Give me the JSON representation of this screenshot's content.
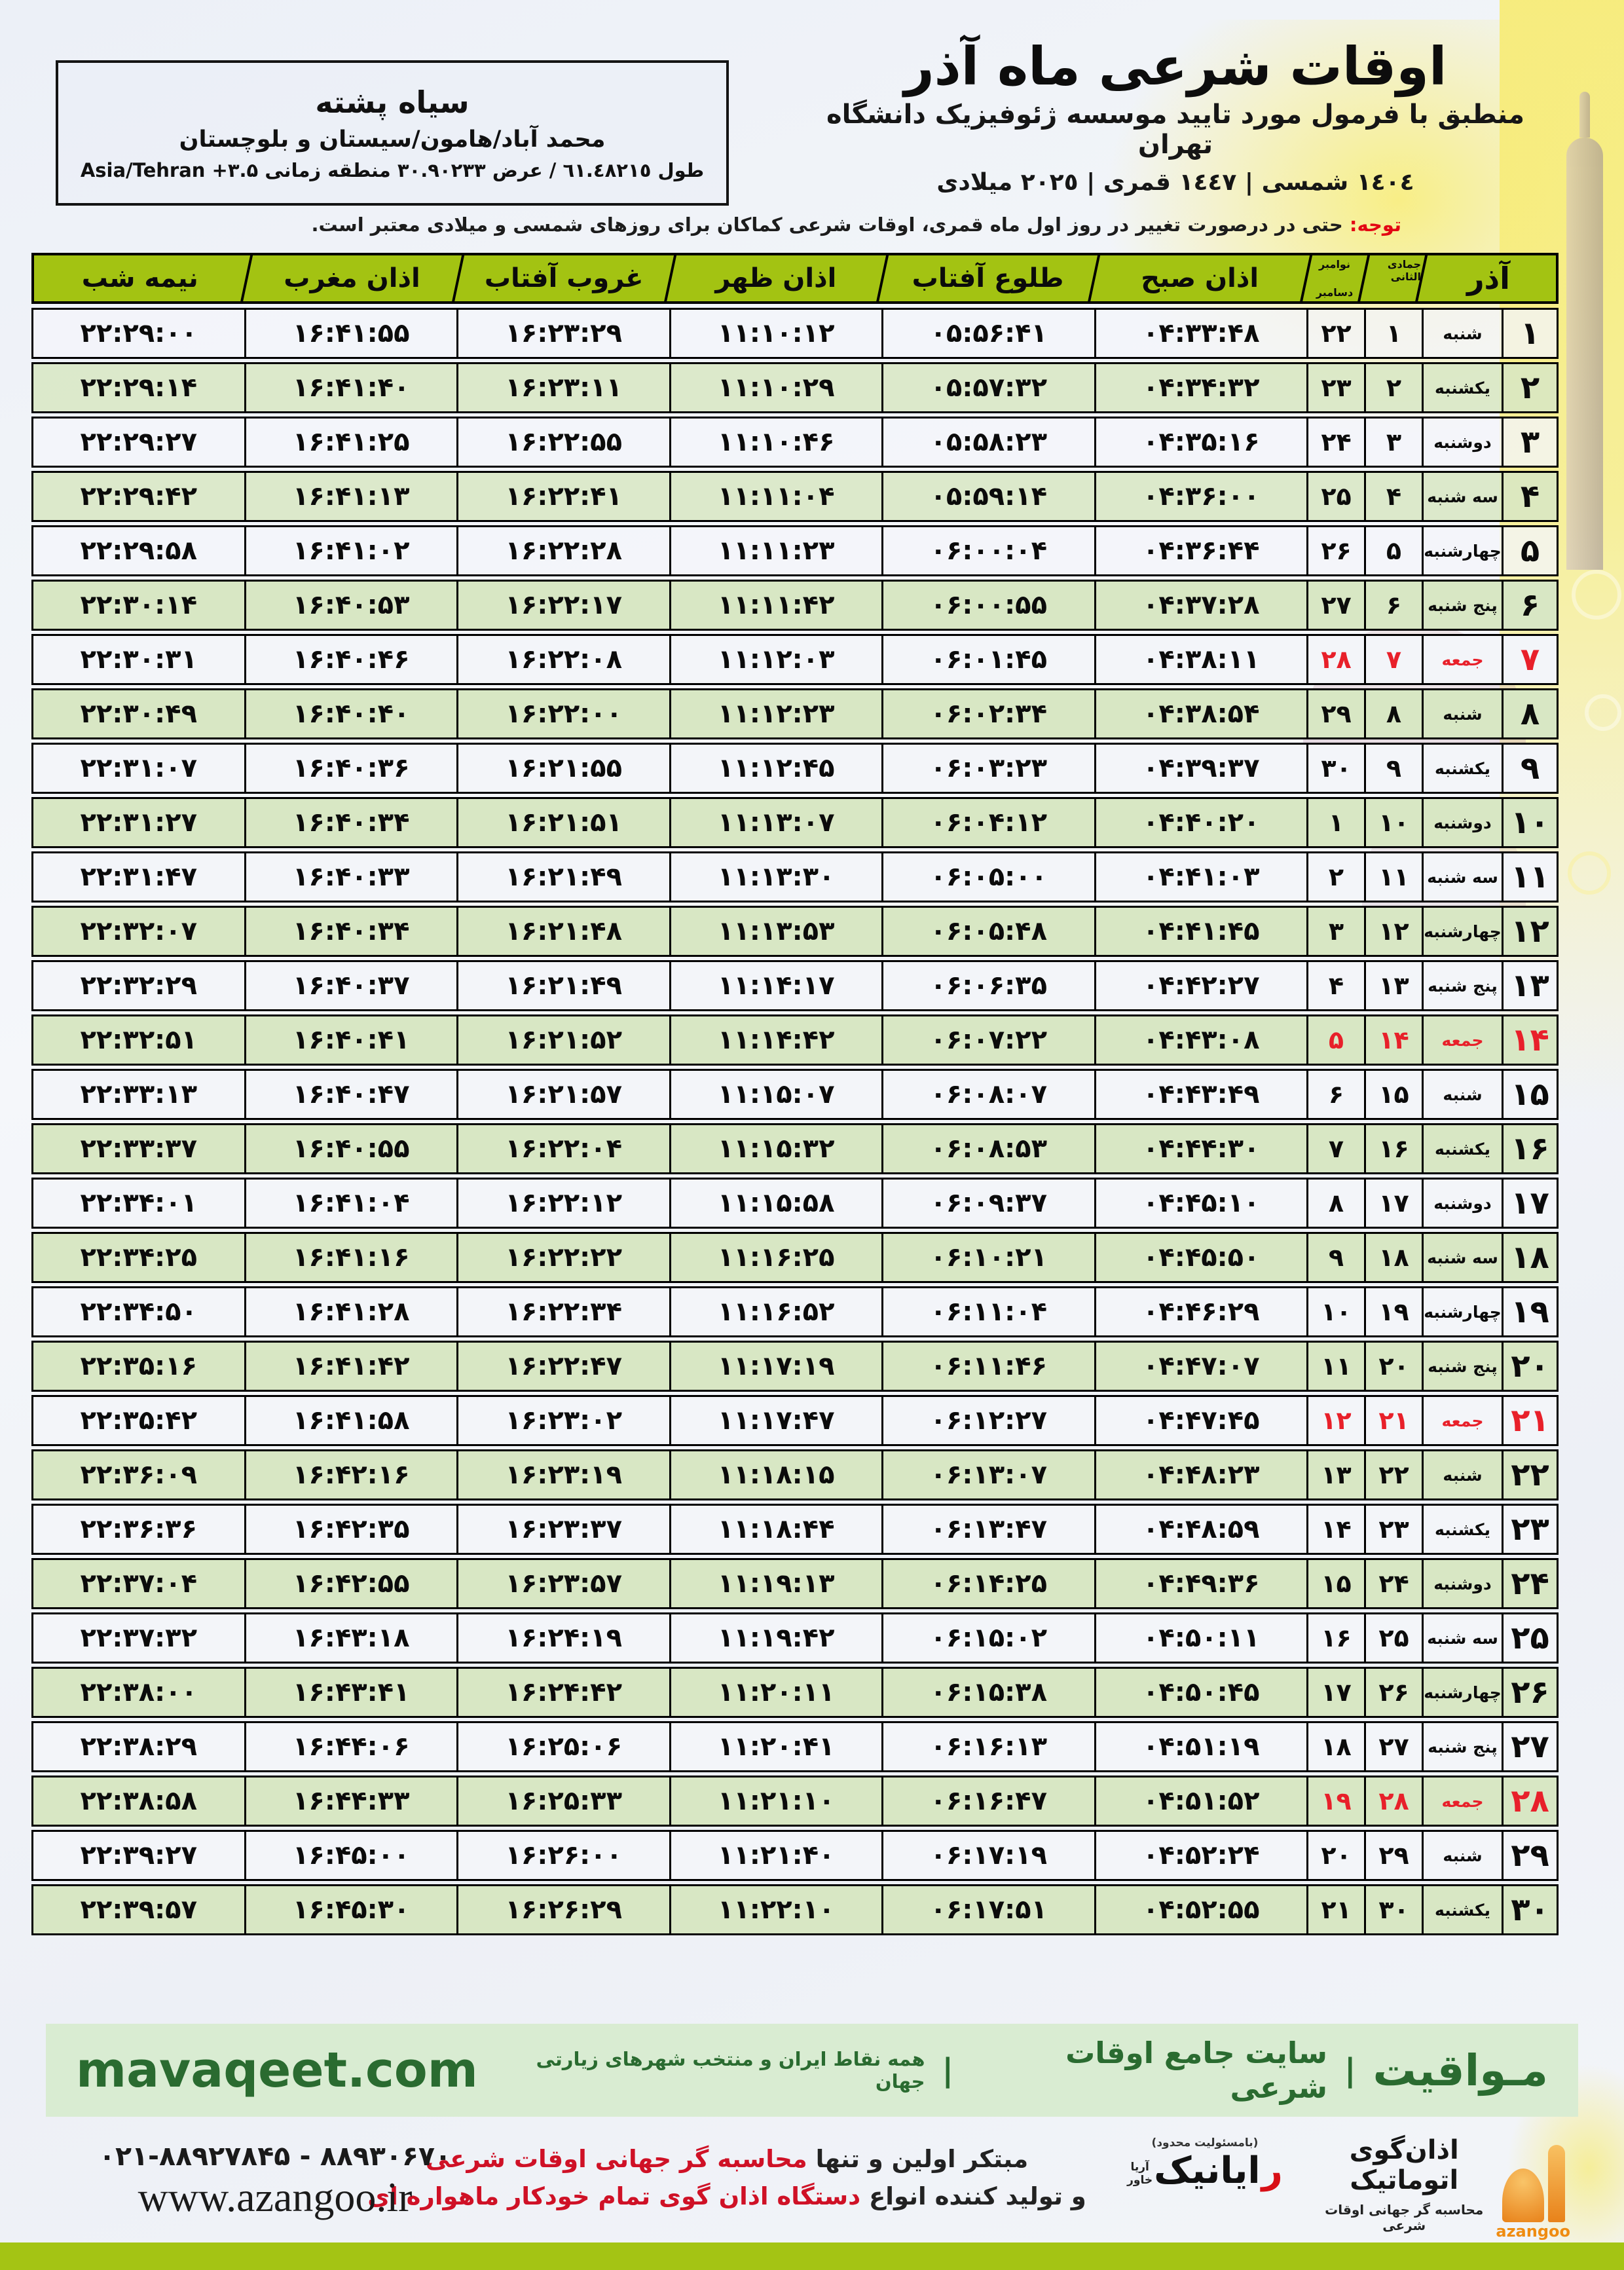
{
  "location_box": {
    "city": "سیاه پشته",
    "region": "محمد آباد/هامون/سیستان و بلوچستان",
    "coords": "طول ٦١.٤٨٢١٥ / عرض ٣٠.٩٠٢٣٣ منطقه زمانی ۳.۵+ Asia/Tehran"
  },
  "header": {
    "title": "اوقات شرعی ماه آذر",
    "subtitle": "منطبق با فرمول مورد تایید موسسه ژئوفیزیک دانشگاه تهران",
    "years": "١٤٠٤ شمسی | ١٤٤٧ قمری | ٢٠٢٥ میلادی"
  },
  "notice": {
    "label": "توجه:",
    "text": " حتی در درصورت تغییر در روز اول ماه قمری، اوقات شرعی کماکان برای روزهای شمسی و میلادی معتبر است."
  },
  "table": {
    "headers": {
      "azar": "آذر",
      "lunar_month": "جمادی الثانی",
      "greg_month_top": "نوامبر",
      "greg_month_bottom": "دسامبر",
      "fajr": "اذان صبح",
      "sunrise": "طلوع آفتاب",
      "dhuhr": "اذان ظهر",
      "sunset": "غروب آفتاب",
      "maghrib": "اذان مغرب",
      "midnight": "نیمه شب"
    },
    "rows": [
      {
        "azar": "۱",
        "weekday": "شنبه",
        "lunar": "۱",
        "greg": "۲۲",
        "fajr": "۰۴:۳۳:۴۸",
        "sunrise": "۰۵:۵۶:۴۱",
        "dhuhr": "۱۱:۱۰:۱۲",
        "sunset": "۱۶:۲۳:۲۹",
        "maghrib": "۱۶:۴۱:۵۵",
        "midnight": "۲۲:۲۹:۰۰",
        "friday": false
      },
      {
        "azar": "۲",
        "weekday": "یکشنبه",
        "lunar": "۲",
        "greg": "۲۳",
        "fajr": "۰۴:۳۴:۳۲",
        "sunrise": "۰۵:۵۷:۳۲",
        "dhuhr": "۱۱:۱۰:۲۹",
        "sunset": "۱۶:۲۳:۱۱",
        "maghrib": "۱۶:۴۱:۴۰",
        "midnight": "۲۲:۲۹:۱۴",
        "friday": false
      },
      {
        "azar": "۳",
        "weekday": "دوشنبه",
        "lunar": "۳",
        "greg": "۲۴",
        "fajr": "۰۴:۳۵:۱۶",
        "sunrise": "۰۵:۵۸:۲۳",
        "dhuhr": "۱۱:۱۰:۴۶",
        "sunset": "۱۶:۲۲:۵۵",
        "maghrib": "۱۶:۴۱:۲۵",
        "midnight": "۲۲:۲۹:۲۷",
        "friday": false
      },
      {
        "azar": "۴",
        "weekday": "سه شنبه",
        "lunar": "۴",
        "greg": "۲۵",
        "fajr": "۰۴:۳۶:۰۰",
        "sunrise": "۰۵:۵۹:۱۴",
        "dhuhr": "۱۱:۱۱:۰۴",
        "sunset": "۱۶:۲۲:۴۱",
        "maghrib": "۱۶:۴۱:۱۳",
        "midnight": "۲۲:۲۹:۴۲",
        "friday": false
      },
      {
        "azar": "۵",
        "weekday": "چهارشنبه",
        "lunar": "۵",
        "greg": "۲۶",
        "fajr": "۰۴:۳۶:۴۴",
        "sunrise": "۰۶:۰۰:۰۴",
        "dhuhr": "۱۱:۱۱:۲۳",
        "sunset": "۱۶:۲۲:۲۸",
        "maghrib": "۱۶:۴۱:۰۲",
        "midnight": "۲۲:۲۹:۵۸",
        "friday": false
      },
      {
        "azar": "۶",
        "weekday": "پنج شنبه",
        "lunar": "۶",
        "greg": "۲۷",
        "fajr": "۰۴:۳۷:۲۸",
        "sunrise": "۰۶:۰۰:۵۵",
        "dhuhr": "۱۱:۱۱:۴۲",
        "sunset": "۱۶:۲۲:۱۷",
        "maghrib": "۱۶:۴۰:۵۳",
        "midnight": "۲۲:۳۰:۱۴",
        "friday": false
      },
      {
        "azar": "۷",
        "weekday": "جمعه",
        "lunar": "۷",
        "greg": "۲۸",
        "fajr": "۰۴:۳۸:۱۱",
        "sunrise": "۰۶:۰۱:۴۵",
        "dhuhr": "۱۱:۱۲:۰۳",
        "sunset": "۱۶:۲۲:۰۸",
        "maghrib": "۱۶:۴۰:۴۶",
        "midnight": "۲۲:۳۰:۳۱",
        "friday": true
      },
      {
        "azar": "۸",
        "weekday": "شنبه",
        "lunar": "۸",
        "greg": "۲۹",
        "fajr": "۰۴:۳۸:۵۴",
        "sunrise": "۰۶:۰۲:۳۴",
        "dhuhr": "۱۱:۱۲:۲۳",
        "sunset": "۱۶:۲۲:۰۰",
        "maghrib": "۱۶:۴۰:۴۰",
        "midnight": "۲۲:۳۰:۴۹",
        "friday": false
      },
      {
        "azar": "۹",
        "weekday": "یکشنبه",
        "lunar": "۹",
        "greg": "۳۰",
        "fajr": "۰۴:۳۹:۳۷",
        "sunrise": "۰۶:۰۳:۲۳",
        "dhuhr": "۱۱:۱۲:۴۵",
        "sunset": "۱۶:۲۱:۵۵",
        "maghrib": "۱۶:۴۰:۳۶",
        "midnight": "۲۲:۳۱:۰۷",
        "friday": false
      },
      {
        "azar": "۱۰",
        "weekday": "دوشنبه",
        "lunar": "۱۰",
        "greg": "۱",
        "fajr": "۰۴:۴۰:۲۰",
        "sunrise": "۰۶:۰۴:۱۲",
        "dhuhr": "۱۱:۱۳:۰۷",
        "sunset": "۱۶:۲۱:۵۱",
        "maghrib": "۱۶:۴۰:۳۴",
        "midnight": "۲۲:۳۱:۲۷",
        "friday": false
      },
      {
        "azar": "۱۱",
        "weekday": "سه شنبه",
        "lunar": "۱۱",
        "greg": "۲",
        "fajr": "۰۴:۴۱:۰۳",
        "sunrise": "۰۶:۰۵:۰۰",
        "dhuhr": "۱۱:۱۳:۳۰",
        "sunset": "۱۶:۲۱:۴۹",
        "maghrib": "۱۶:۴۰:۳۳",
        "midnight": "۲۲:۳۱:۴۷",
        "friday": false
      },
      {
        "azar": "۱۲",
        "weekday": "چهارشنبه",
        "lunar": "۱۲",
        "greg": "۳",
        "fajr": "۰۴:۴۱:۴۵",
        "sunrise": "۰۶:۰۵:۴۸",
        "dhuhr": "۱۱:۱۳:۵۳",
        "sunset": "۱۶:۲۱:۴۸",
        "maghrib": "۱۶:۴۰:۳۴",
        "midnight": "۲۲:۳۲:۰۷",
        "friday": false
      },
      {
        "azar": "۱۳",
        "weekday": "پنج شنبه",
        "lunar": "۱۳",
        "greg": "۴",
        "fajr": "۰۴:۴۲:۲۷",
        "sunrise": "۰۶:۰۶:۳۵",
        "dhuhr": "۱۱:۱۴:۱۷",
        "sunset": "۱۶:۲۱:۴۹",
        "maghrib": "۱۶:۴۰:۳۷",
        "midnight": "۲۲:۳۲:۲۹",
        "friday": false
      },
      {
        "azar": "۱۴",
        "weekday": "جمعه",
        "lunar": "۱۴",
        "greg": "۵",
        "fajr": "۰۴:۴۳:۰۸",
        "sunrise": "۰۶:۰۷:۲۲",
        "dhuhr": "۱۱:۱۴:۴۲",
        "sunset": "۱۶:۲۱:۵۲",
        "maghrib": "۱۶:۴۰:۴۱",
        "midnight": "۲۲:۳۲:۵۱",
        "friday": true
      },
      {
        "azar": "۱۵",
        "weekday": "شنبه",
        "lunar": "۱۵",
        "greg": "۶",
        "fajr": "۰۴:۴۳:۴۹",
        "sunrise": "۰۶:۰۸:۰۷",
        "dhuhr": "۱۱:۱۵:۰۷",
        "sunset": "۱۶:۲۱:۵۷",
        "maghrib": "۱۶:۴۰:۴۷",
        "midnight": "۲۲:۳۳:۱۳",
        "friday": false
      },
      {
        "azar": "۱۶",
        "weekday": "یکشنبه",
        "lunar": "۱۶",
        "greg": "۷",
        "fajr": "۰۴:۴۴:۳۰",
        "sunrise": "۰۶:۰۸:۵۳",
        "dhuhr": "۱۱:۱۵:۳۲",
        "sunset": "۱۶:۲۲:۰۴",
        "maghrib": "۱۶:۴۰:۵۵",
        "midnight": "۲۲:۳۳:۳۷",
        "friday": false
      },
      {
        "azar": "۱۷",
        "weekday": "دوشنبه",
        "lunar": "۱۷",
        "greg": "۸",
        "fajr": "۰۴:۴۵:۱۰",
        "sunrise": "۰۶:۰۹:۳۷",
        "dhuhr": "۱۱:۱۵:۵۸",
        "sunset": "۱۶:۲۲:۱۲",
        "maghrib": "۱۶:۴۱:۰۴",
        "midnight": "۲۲:۳۴:۰۱",
        "friday": false
      },
      {
        "azar": "۱۸",
        "weekday": "سه شنبه",
        "lunar": "۱۸",
        "greg": "۹",
        "fajr": "۰۴:۴۵:۵۰",
        "sunrise": "۰۶:۱۰:۲۱",
        "dhuhr": "۱۱:۱۶:۲۵",
        "sunset": "۱۶:۲۲:۲۲",
        "maghrib": "۱۶:۴۱:۱۶",
        "midnight": "۲۲:۳۴:۲۵",
        "friday": false
      },
      {
        "azar": "۱۹",
        "weekday": "چهارشنبه",
        "lunar": "۱۹",
        "greg": "۱۰",
        "fajr": "۰۴:۴۶:۲۹",
        "sunrise": "۰۶:۱۱:۰۴",
        "dhuhr": "۱۱:۱۶:۵۲",
        "sunset": "۱۶:۲۲:۳۴",
        "maghrib": "۱۶:۴۱:۲۸",
        "midnight": "۲۲:۳۴:۵۰",
        "friday": false
      },
      {
        "azar": "۲۰",
        "weekday": "پنج شنبه",
        "lunar": "۲۰",
        "greg": "۱۱",
        "fajr": "۰۴:۴۷:۰۷",
        "sunrise": "۰۶:۱۱:۴۶",
        "dhuhr": "۱۱:۱۷:۱۹",
        "sunset": "۱۶:۲۲:۴۷",
        "maghrib": "۱۶:۴۱:۴۲",
        "midnight": "۲۲:۳۵:۱۶",
        "friday": false
      },
      {
        "azar": "۲۱",
        "weekday": "جمعه",
        "lunar": "۲۱",
        "greg": "۱۲",
        "fajr": "۰۴:۴۷:۴۵",
        "sunrise": "۰۶:۱۲:۲۷",
        "dhuhr": "۱۱:۱۷:۴۷",
        "sunset": "۱۶:۲۳:۰۲",
        "maghrib": "۱۶:۴۱:۵۸",
        "midnight": "۲۲:۳۵:۴۲",
        "friday": true
      },
      {
        "azar": "۲۲",
        "weekday": "شنبه",
        "lunar": "۲۲",
        "greg": "۱۳",
        "fajr": "۰۴:۴۸:۲۳",
        "sunrise": "۰۶:۱۳:۰۷",
        "dhuhr": "۱۱:۱۸:۱۵",
        "sunset": "۱۶:۲۳:۱۹",
        "maghrib": "۱۶:۴۲:۱۶",
        "midnight": "۲۲:۳۶:۰۹",
        "friday": false
      },
      {
        "azar": "۲۳",
        "weekday": "یکشنبه",
        "lunar": "۲۳",
        "greg": "۱۴",
        "fajr": "۰۴:۴۸:۵۹",
        "sunrise": "۰۶:۱۳:۴۷",
        "dhuhr": "۱۱:۱۸:۴۴",
        "sunset": "۱۶:۲۳:۳۷",
        "maghrib": "۱۶:۴۲:۳۵",
        "midnight": "۲۲:۳۶:۳۶",
        "friday": false
      },
      {
        "azar": "۲۴",
        "weekday": "دوشنبه",
        "lunar": "۲۴",
        "greg": "۱۵",
        "fajr": "۰۴:۴۹:۳۶",
        "sunrise": "۰۶:۱۴:۲۵",
        "dhuhr": "۱۱:۱۹:۱۳",
        "sunset": "۱۶:۲۳:۵۷",
        "maghrib": "۱۶:۴۲:۵۵",
        "midnight": "۲۲:۳۷:۰۴",
        "friday": false
      },
      {
        "azar": "۲۵",
        "weekday": "سه شنبه",
        "lunar": "۲۵",
        "greg": "۱۶",
        "fajr": "۰۴:۵۰:۱۱",
        "sunrise": "۰۶:۱۵:۰۲",
        "dhuhr": "۱۱:۱۹:۴۲",
        "sunset": "۱۶:۲۴:۱۹",
        "maghrib": "۱۶:۴۳:۱۸",
        "midnight": "۲۲:۳۷:۳۲",
        "friday": false
      },
      {
        "azar": "۲۶",
        "weekday": "چهارشنبه",
        "lunar": "۲۶",
        "greg": "۱۷",
        "fajr": "۰۴:۵۰:۴۵",
        "sunrise": "۰۶:۱۵:۳۸",
        "dhuhr": "۱۱:۲۰:۱۱",
        "sunset": "۱۶:۲۴:۴۲",
        "maghrib": "۱۶:۴۳:۴۱",
        "midnight": "۲۲:۳۸:۰۰",
        "friday": false
      },
      {
        "azar": "۲۷",
        "weekday": "پنج شنبه",
        "lunar": "۲۷",
        "greg": "۱۸",
        "fajr": "۰۴:۵۱:۱۹",
        "sunrise": "۰۶:۱۶:۱۳",
        "dhuhr": "۱۱:۲۰:۴۱",
        "sunset": "۱۶:۲۵:۰۶",
        "maghrib": "۱۶:۴۴:۰۶",
        "midnight": "۲۲:۳۸:۲۹",
        "friday": false
      },
      {
        "azar": "۲۸",
        "weekday": "جمعه",
        "lunar": "۲۸",
        "greg": "۱۹",
        "fajr": "۰۴:۵۱:۵۲",
        "sunrise": "۰۶:۱۶:۴۷",
        "dhuhr": "۱۱:۲۱:۱۰",
        "sunset": "۱۶:۲۵:۳۳",
        "maghrib": "۱۶:۴۴:۳۳",
        "midnight": "۲۲:۳۸:۵۸",
        "friday": true
      },
      {
        "azar": "۲۹",
        "weekday": "شنبه",
        "lunar": "۲۹",
        "greg": "۲۰",
        "fajr": "۰۴:۵۲:۲۴",
        "sunrise": "۰۶:۱۷:۱۹",
        "dhuhr": "۱۱:۲۱:۴۰",
        "sunset": "۱۶:۲۶:۰۰",
        "maghrib": "۱۶:۴۵:۰۰",
        "midnight": "۲۲:۳۹:۲۷",
        "friday": false
      },
      {
        "azar": "۳۰",
        "weekday": "یکشنبه",
        "lunar": "۳۰",
        "greg": "۲۱",
        "fajr": "۰۴:۵۲:۵۵",
        "sunrise": "۰۶:۱۷:۵۱",
        "dhuhr": "۱۱:۲۲:۱۰",
        "sunset": "۱۶:۲۶:۲۹",
        "maghrib": "۱۶:۴۵:۳۰",
        "midnight": "۲۲:۳۹:۵۷",
        "friday": false
      }
    ]
  },
  "footer": {
    "brand": "مـواقیت",
    "separator": "|",
    "site_desc": "سایت جامع اوقات شرعی",
    "site_scope": "همه نقاط ایران و منتخب شهرهای زیارتی جهان",
    "domain": "mavaqeet.com"
  },
  "bottom": {
    "azangoo": {
      "name_fa": "اذان‌گوی اتوماتیک",
      "tagline": "محاسبه گر جهانی اوقات شرعی",
      "name_en": "azangoo"
    },
    "rayanik": {
      "top": "(بامسئولیت محدود)",
      "initial": "ر",
      "rest": "ایانیک",
      "side1": "آریا",
      "side2": "خاور"
    },
    "promo1_black": "مبتکر اولین و تنها ",
    "promo1_red": "محاسبه گر جهانی اوقات شرعی",
    "promo2_black": "و تولید کننده انواع ",
    "promo2_red": "دستگاه اذان گوی تمام خودکار ماهواره ای",
    "phone": "۰۲۱-۸۸۹۲۷۸۴۵ - ۸۸۹۳۰۶۷۰",
    "website": "www.azangoo.ir"
  },
  "colors": {
    "header_green": "#a3c312",
    "row_green": "#d8e7c4",
    "row_white": "#f3f5f9",
    "friday_red": "#e8202a",
    "notice_red": "#e30613",
    "footer_bg": "#d9ecd2",
    "footer_text_green": "#2a6b30",
    "bottom_bar_green": "#a4c414",
    "azangoo_orange": "#ef8c12"
  }
}
